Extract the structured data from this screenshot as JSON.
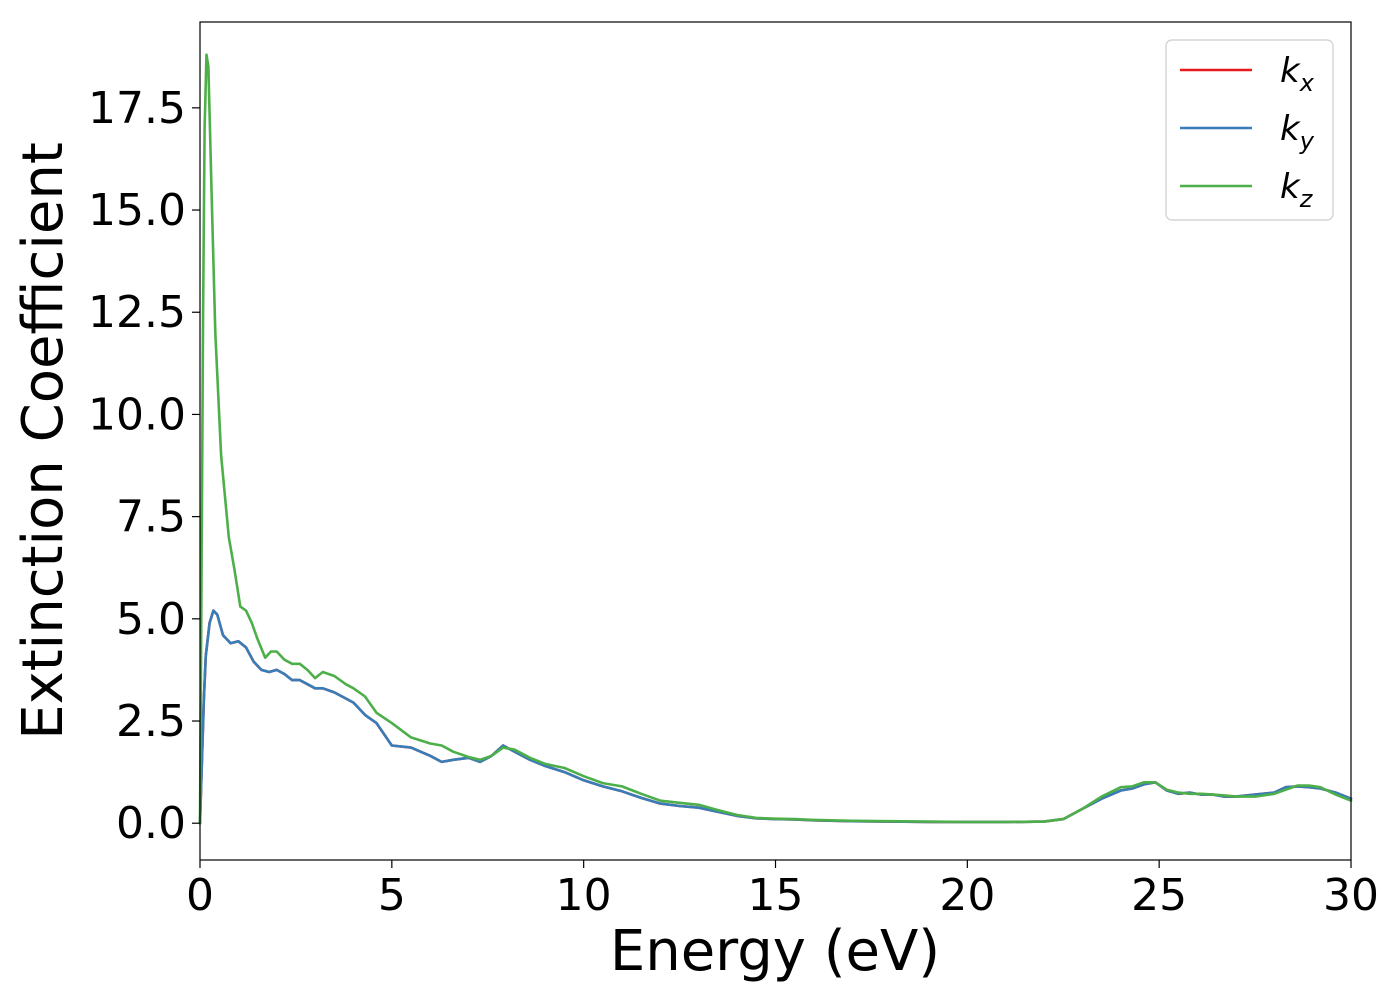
{
  "chart_data": {
    "type": "line",
    "xlabel": "Energy (eV)",
    "ylabel": "Extinction Coefficient",
    "xlim": [
      0,
      30
    ],
    "ylim": [
      -0.9,
      19.6
    ],
    "xticks": [
      0,
      5,
      10,
      15,
      20,
      25,
      30
    ],
    "xtick_labels": [
      "0",
      "5",
      "10",
      "15",
      "20",
      "25",
      "30"
    ],
    "yticks": [
      0,
      2.5,
      5,
      7.5,
      10,
      12.5,
      15,
      17.5
    ],
    "ytick_labels": [
      "0.0",
      "2.5",
      "5.0",
      "7.5",
      "10.0",
      "12.5",
      "15.0",
      "17.5"
    ],
    "grid": false,
    "legend_position": "top-right",
    "series": [
      {
        "name": "k",
        "subscript": "x",
        "color": "#e41a1c",
        "x": [
          0,
          0.05,
          0.1,
          0.15,
          0.25,
          0.35,
          0.45,
          0.6,
          0.8,
          1.0,
          1.2,
          1.4,
          1.6,
          1.8,
          2.0,
          2.2,
          2.4,
          2.6,
          2.8,
          3.0,
          3.2,
          3.5,
          3.8,
          4.0,
          4.3,
          4.6,
          5.0,
          5.5,
          6.0,
          6.3,
          6.6,
          7.0,
          7.3,
          7.6,
          7.9,
          8.2,
          8.6,
          9.0,
          9.5,
          10.0,
          10.5,
          11.0,
          11.5,
          12.0,
          12.5,
          13.0,
          13.5,
          14.0,
          14.5,
          15.0,
          15.5,
          16.0,
          17.0,
          18.0,
          19.0,
          20.0,
          21.0,
          22.0,
          22.5,
          23.0,
          23.5,
          24.0,
          24.3,
          24.6,
          24.9,
          25.2,
          25.5,
          25.8,
          26.1,
          26.4,
          26.7,
          27.0,
          27.5,
          28.0,
          28.3,
          28.6,
          28.9,
          29.2,
          29.6,
          30.0
        ],
        "values": [
          0,
          1.5,
          3.0,
          4.1,
          4.9,
          5.2,
          5.1,
          4.6,
          4.4,
          4.45,
          4.3,
          3.95,
          3.75,
          3.7,
          3.75,
          3.65,
          3.5,
          3.5,
          3.4,
          3.3,
          3.3,
          3.2,
          3.05,
          2.95,
          2.65,
          2.45,
          1.9,
          1.85,
          1.65,
          1.5,
          1.55,
          1.6,
          1.5,
          1.65,
          1.9,
          1.75,
          1.55,
          1.4,
          1.25,
          1.05,
          0.9,
          0.78,
          0.62,
          0.48,
          0.42,
          0.38,
          0.28,
          0.18,
          0.12,
          0.1,
          0.09,
          0.07,
          0.05,
          0.04,
          0.03,
          0.03,
          0.03,
          0.04,
          0.1,
          0.35,
          0.6,
          0.8,
          0.85,
          0.95,
          1.0,
          0.8,
          0.72,
          0.75,
          0.7,
          0.7,
          0.65,
          0.65,
          0.7,
          0.75,
          0.88,
          0.9,
          0.88,
          0.85,
          0.75,
          0.6
        ]
      },
      {
        "name": "k",
        "subscript": "y",
        "color": "#377eb8",
        "x": [
          0,
          0.05,
          0.1,
          0.15,
          0.25,
          0.35,
          0.45,
          0.6,
          0.8,
          1.0,
          1.2,
          1.4,
          1.6,
          1.8,
          2.0,
          2.2,
          2.4,
          2.6,
          2.8,
          3.0,
          3.2,
          3.5,
          3.8,
          4.0,
          4.3,
          4.6,
          5.0,
          5.5,
          6.0,
          6.3,
          6.6,
          7.0,
          7.3,
          7.6,
          7.9,
          8.2,
          8.6,
          9.0,
          9.5,
          10.0,
          10.5,
          11.0,
          11.5,
          12.0,
          12.5,
          13.0,
          13.5,
          14.0,
          14.5,
          15.0,
          15.5,
          16.0,
          17.0,
          18.0,
          19.0,
          20.0,
          21.0,
          22.0,
          22.5,
          23.0,
          23.5,
          24.0,
          24.3,
          24.6,
          24.9,
          25.2,
          25.5,
          25.8,
          26.1,
          26.4,
          26.7,
          27.0,
          27.5,
          28.0,
          28.3,
          28.6,
          28.9,
          29.2,
          29.6,
          30.0
        ],
        "values": [
          0,
          1.5,
          3.0,
          4.1,
          4.9,
          5.2,
          5.1,
          4.6,
          4.4,
          4.45,
          4.3,
          3.95,
          3.75,
          3.7,
          3.75,
          3.65,
          3.5,
          3.5,
          3.4,
          3.3,
          3.3,
          3.2,
          3.05,
          2.95,
          2.65,
          2.45,
          1.9,
          1.85,
          1.65,
          1.5,
          1.55,
          1.6,
          1.5,
          1.65,
          1.9,
          1.75,
          1.55,
          1.4,
          1.25,
          1.05,
          0.9,
          0.78,
          0.62,
          0.48,
          0.42,
          0.38,
          0.28,
          0.18,
          0.12,
          0.1,
          0.09,
          0.07,
          0.05,
          0.04,
          0.03,
          0.03,
          0.03,
          0.04,
          0.1,
          0.35,
          0.6,
          0.8,
          0.85,
          0.95,
          1.0,
          0.8,
          0.72,
          0.75,
          0.7,
          0.7,
          0.65,
          0.65,
          0.7,
          0.75,
          0.88,
          0.9,
          0.88,
          0.85,
          0.75,
          0.6
        ]
      },
      {
        "name": "k",
        "subscript": "z",
        "color": "#4daf4a",
        "x": [
          0,
          0.04,
          0.08,
          0.12,
          0.17,
          0.22,
          0.3,
          0.4,
          0.55,
          0.75,
          0.9,
          1.05,
          1.2,
          1.35,
          1.5,
          1.7,
          1.85,
          2.0,
          2.2,
          2.4,
          2.6,
          2.8,
          3.0,
          3.2,
          3.5,
          3.8,
          4.0,
          4.3,
          4.6,
          5.0,
          5.5,
          6.0,
          6.3,
          6.6,
          7.0,
          7.3,
          7.6,
          7.9,
          8.2,
          8.6,
          9.0,
          9.5,
          10.0,
          10.5,
          11.0,
          11.5,
          12.0,
          12.5,
          13.0,
          13.5,
          14.0,
          14.5,
          15.0,
          15.5,
          16.0,
          17.0,
          18.0,
          19.0,
          20.0,
          21.0,
          22.0,
          22.5,
          23.0,
          23.5,
          24.0,
          24.3,
          24.6,
          24.9,
          25.2,
          25.5,
          25.8,
          26.1,
          26.4,
          26.7,
          27.0,
          27.5,
          28.0,
          28.3,
          28.6,
          28.9,
          29.2,
          29.6,
          30.0
        ],
        "values": [
          0,
          6.0,
          12.5,
          17.0,
          18.8,
          18.5,
          15.5,
          12.0,
          9.0,
          7.0,
          6.2,
          5.3,
          5.2,
          4.9,
          4.5,
          4.05,
          4.2,
          4.2,
          4.0,
          3.9,
          3.9,
          3.75,
          3.55,
          3.7,
          3.6,
          3.4,
          3.3,
          3.1,
          2.7,
          2.45,
          2.1,
          1.95,
          1.9,
          1.75,
          1.62,
          1.55,
          1.65,
          1.85,
          1.8,
          1.6,
          1.45,
          1.35,
          1.15,
          0.98,
          0.9,
          0.72,
          0.55,
          0.5,
          0.45,
          0.32,
          0.2,
          0.13,
          0.11,
          0.1,
          0.08,
          0.06,
          0.05,
          0.04,
          0.03,
          0.03,
          0.04,
          0.1,
          0.35,
          0.65,
          0.88,
          0.9,
          1.0,
          1.0,
          0.82,
          0.75,
          0.72,
          0.72,
          0.7,
          0.68,
          0.65,
          0.65,
          0.72,
          0.82,
          0.92,
          0.92,
          0.88,
          0.7,
          0.55
        ]
      }
    ]
  }
}
